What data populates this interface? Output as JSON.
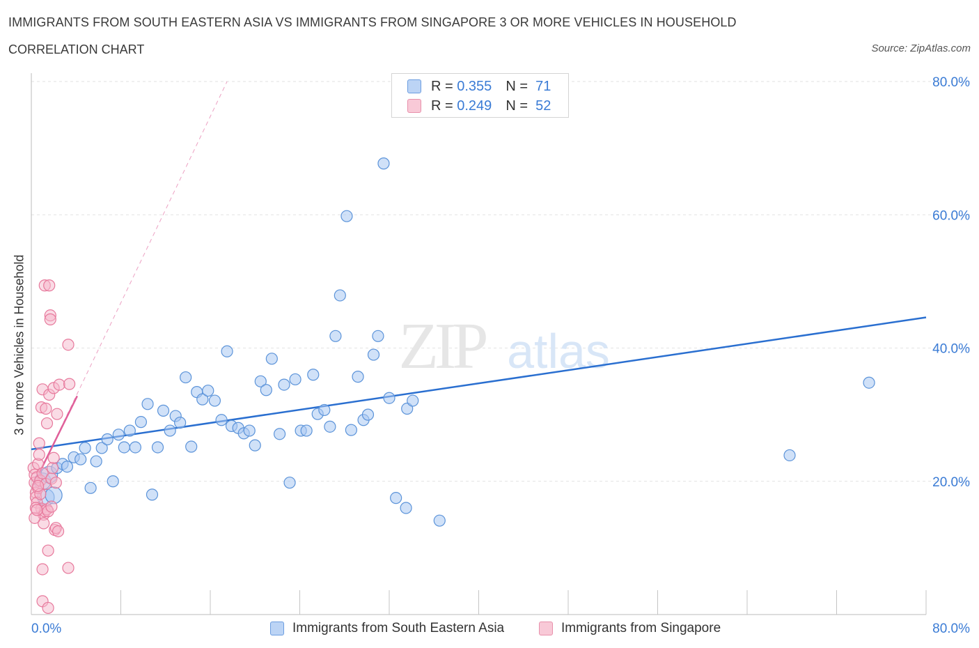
{
  "header": {
    "title": "IMMIGRANTS FROM SOUTH EASTERN ASIA VS IMMIGRANTS FROM SINGAPORE 3 OR MORE VEHICLES IN HOUSEHOLD",
    "subtitle": "CORRELATION CHART",
    "source": "Source: ZipAtlas.com"
  },
  "legend_box": {
    "rows": [
      {
        "r_label": "R =",
        "r_value": "0.355",
        "n_label": "N =",
        "n_value": "71"
      },
      {
        "r_label": "R =",
        "r_value": "0.249",
        "n_label": "N =",
        "n_value": "52"
      }
    ]
  },
  "watermark": {
    "zip": "ZIP",
    "atlas": "atlas"
  },
  "colors": {
    "blue_fill": "#a9c8f2",
    "blue_stroke": "#5b93d9",
    "blue_line": "#2a6fd0",
    "pink_fill": "#f5b8cb",
    "pink_stroke": "#e7799c",
    "pink_line": "#e0609a",
    "axis_text": "#3a7bd5",
    "grid": "#e2e2e2"
  },
  "chart_data": {
    "type": "scatter",
    "title": "IMMIGRANTS FROM SOUTH EASTERN ASIA VS IMMIGRANTS FROM SINGAPORE 3 OR MORE VEHICLES IN HOUSEHOLD",
    "xlabel": "",
    "ylabel": "3 or more Vehicles in Household",
    "xlim": [
      0,
      80
    ],
    "ylim": [
      0,
      80
    ],
    "x_tick_labels": [
      "0.0%",
      "80.0%"
    ],
    "y_tick_labels": [
      "20.0%",
      "40.0%",
      "60.0%",
      "80.0%"
    ],
    "y_ticks": [
      20,
      40,
      60,
      80
    ],
    "grid": true,
    "legend_position": "bottom",
    "series": [
      {
        "name": "Immigrants from South Eastern Asia",
        "color": "#a9c8f2",
        "r": 0.355,
        "n": 71,
        "trend": {
          "x": [
            0,
            80
          ],
          "y": [
            24.8,
            44.6
          ]
        },
        "points": [
          [
            1.0,
            20.0
          ],
          [
            1.3,
            17.6
          ],
          [
            1.6,
            21.0
          ],
          [
            2.3,
            22.0
          ],
          [
            2.8,
            22.6
          ],
          [
            3.2,
            22.2
          ],
          [
            3.8,
            23.6
          ],
          [
            4.4,
            23.3
          ],
          [
            4.8,
            25.0
          ],
          [
            5.3,
            19.0
          ],
          [
            5.8,
            23.0
          ],
          [
            6.3,
            25.0
          ],
          [
            6.8,
            26.3
          ],
          [
            7.3,
            20.0
          ],
          [
            7.8,
            27.0
          ],
          [
            8.3,
            25.1
          ],
          [
            8.8,
            27.6
          ],
          [
            9.3,
            25.1
          ],
          [
            9.8,
            28.9
          ],
          [
            10.4,
            31.6
          ],
          [
            10.8,
            18.0
          ],
          [
            11.3,
            25.1
          ],
          [
            11.8,
            30.6
          ],
          [
            12.4,
            27.6
          ],
          [
            12.9,
            29.8
          ],
          [
            13.3,
            28.8
          ],
          [
            13.8,
            35.6
          ],
          [
            14.3,
            25.2
          ],
          [
            14.8,
            33.4
          ],
          [
            15.3,
            32.3
          ],
          [
            15.8,
            33.6
          ],
          [
            16.4,
            32.1
          ],
          [
            17.0,
            29.2
          ],
          [
            17.5,
            39.5
          ],
          [
            17.9,
            28.3
          ],
          [
            18.5,
            28.0
          ],
          [
            19.0,
            27.2
          ],
          [
            19.5,
            27.6
          ],
          [
            20.0,
            25.4
          ],
          [
            20.5,
            35.0
          ],
          [
            21.0,
            33.7
          ],
          [
            21.5,
            38.4
          ],
          [
            22.2,
            27.1
          ],
          [
            22.6,
            34.5
          ],
          [
            23.1,
            19.8
          ],
          [
            23.6,
            35.3
          ],
          [
            24.1,
            27.6
          ],
          [
            24.6,
            27.6
          ],
          [
            25.2,
            36.0
          ],
          [
            25.6,
            30.1
          ],
          [
            26.2,
            30.7
          ],
          [
            26.7,
            28.2
          ],
          [
            27.2,
            41.8
          ],
          [
            27.6,
            47.9
          ],
          [
            28.2,
            59.8
          ],
          [
            28.6,
            27.7
          ],
          [
            29.2,
            35.7
          ],
          [
            29.7,
            29.2
          ],
          [
            30.1,
            30.0
          ],
          [
            30.6,
            39.0
          ],
          [
            31.0,
            41.8
          ],
          [
            31.5,
            67.7
          ],
          [
            32.0,
            32.5
          ],
          [
            32.6,
            17.5
          ],
          [
            33.5,
            16.0
          ],
          [
            33.6,
            30.9
          ],
          [
            34.1,
            32.1
          ],
          [
            36.5,
            14.1
          ],
          [
            67.8,
            23.9
          ],
          [
            74.9,
            34.8
          ],
          [
            2.0,
            17.9
          ]
        ]
      },
      {
        "name": "Immigrants from Singapore",
        "color": "#f5b8cb",
        "r": 0.249,
        "n": 52,
        "trend_solid": {
          "x": [
            0.2,
            4.1
          ],
          "y": [
            19.5,
            32.8
          ]
        },
        "trend_dashed": {
          "x": [
            0.2,
            17.5
          ],
          "y": [
            19.5,
            80.0
          ]
        },
        "points": [
          [
            0.2,
            22.0
          ],
          [
            0.3,
            21.0
          ],
          [
            0.3,
            19.8
          ],
          [
            0.4,
            18.3
          ],
          [
            0.4,
            17.6
          ],
          [
            0.5,
            16.8
          ],
          [
            0.5,
            20.6
          ],
          [
            0.6,
            22.6
          ],
          [
            0.6,
            19.0
          ],
          [
            0.7,
            25.7
          ],
          [
            0.7,
            24.0
          ],
          [
            0.8,
            20.1
          ],
          [
            0.8,
            18.1
          ],
          [
            0.9,
            15.9
          ],
          [
            0.9,
            31.1
          ],
          [
            1.0,
            33.8
          ],
          [
            1.0,
            21.2
          ],
          [
            1.1,
            15.0
          ],
          [
            1.1,
            13.7
          ],
          [
            1.2,
            49.4
          ],
          [
            1.2,
            15.5
          ],
          [
            1.3,
            19.6
          ],
          [
            1.3,
            30.9
          ],
          [
            1.4,
            28.7
          ],
          [
            1.4,
            15.8
          ],
          [
            1.5,
            9.6
          ],
          [
            1.5,
            15.5
          ],
          [
            1.6,
            33.0
          ],
          [
            1.6,
            49.4
          ],
          [
            1.7,
            44.9
          ],
          [
            1.7,
            44.3
          ],
          [
            1.8,
            20.4
          ],
          [
            1.8,
            16.2
          ],
          [
            1.9,
            22.0
          ],
          [
            2.0,
            23.5
          ],
          [
            2.0,
            34.0
          ],
          [
            2.1,
            12.7
          ],
          [
            2.2,
            13.0
          ],
          [
            2.2,
            19.8
          ],
          [
            2.3,
            30.1
          ],
          [
            2.4,
            12.5
          ],
          [
            2.5,
            34.5
          ],
          [
            0.3,
            14.5
          ],
          [
            0.4,
            16.0
          ],
          [
            1.0,
            6.8
          ],
          [
            1.0,
            2.0
          ],
          [
            1.5,
            1.0
          ],
          [
            3.3,
            40.5
          ],
          [
            3.4,
            34.6
          ],
          [
            3.3,
            7.0
          ],
          [
            0.6,
            19.3
          ],
          [
            0.5,
            15.7
          ]
        ]
      }
    ]
  }
}
